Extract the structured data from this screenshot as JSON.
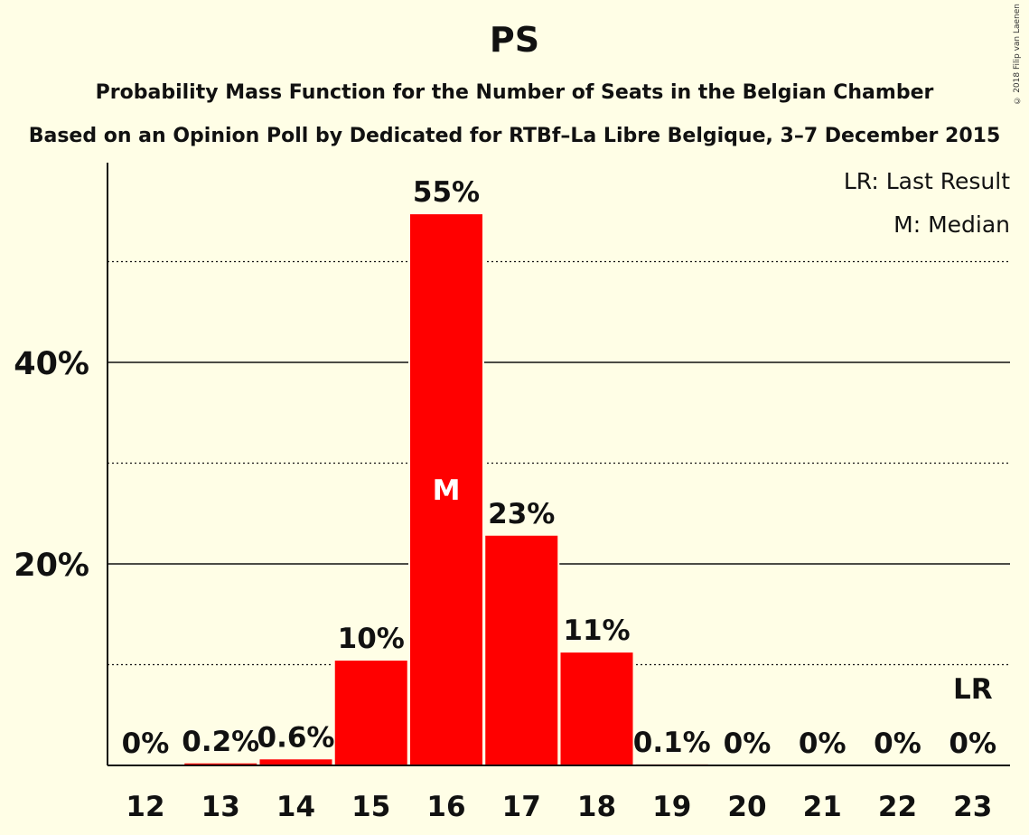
{
  "title": "PS",
  "subtitle_1": "Probability Mass Function for the Number of Seats in the Belgian Chamber",
  "subtitle_2": "Based on an Opinion Poll by Dedicated for RTBf–La Libre Belgique, 3–7 December 2015",
  "copyright": "© 2018 Filip van Laenen",
  "legend": {
    "last_result": "LR: Last Result",
    "median": "M: Median"
  },
  "colors": {
    "background": "#FFFEE6",
    "bar": "#FF0000",
    "text": "#111111"
  },
  "chart_data": {
    "type": "bar",
    "categories": [
      "12",
      "13",
      "14",
      "15",
      "16",
      "17",
      "18",
      "19",
      "20",
      "21",
      "22",
      "23"
    ],
    "values": [
      0,
      0.2,
      0.6,
      10.4,
      54.7,
      22.8,
      11.2,
      0.1,
      0,
      0,
      0,
      0
    ],
    "data_labels": [
      "0%",
      "0.2%",
      "0.6%",
      "10%",
      "55%",
      "23%",
      "11%",
      "0.1%",
      "0%",
      "0%",
      "0%",
      "0%"
    ],
    "median_category": "16",
    "median_marker": "M",
    "last_result_category": "23",
    "last_result_marker": "LR",
    "ylim": [
      0,
      60
    ],
    "yticks": [
      20,
      40
    ],
    "ytick_labels": [
      "20%",
      "40%"
    ],
    "grid": "solid major at 20% steps, dotted minor at 10% steps",
    "legend_position": "top-right"
  }
}
